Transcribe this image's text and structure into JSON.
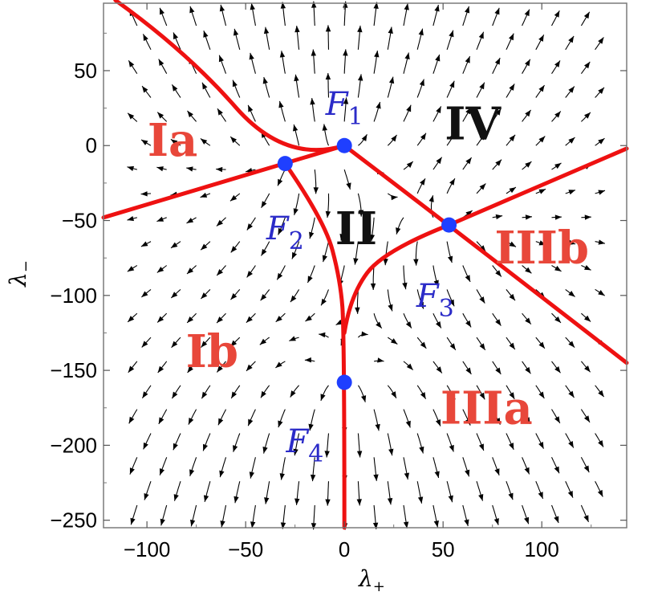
{
  "chart_data": {
    "type": "stream",
    "xlabel": "λ",
    "xlabel_sub": "+",
    "ylabel": "λ",
    "ylabel_sub": "−",
    "xlim": [
      -122,
      143
    ],
    "ylim": [
      -255,
      95
    ],
    "xticks": [
      {
        "value": -100,
        "label": "−100"
      },
      {
        "value": -50,
        "label": "−50"
      },
      {
        "value": 0,
        "label": "0"
      },
      {
        "value": 50,
        "label": "50"
      },
      {
        "value": 100,
        "label": "100"
      }
    ],
    "yticks": [
      {
        "value": 50,
        "label": "50"
      },
      {
        "value": 0,
        "label": "0"
      },
      {
        "value": -50,
        "label": "−50"
      },
      {
        "value": -100,
        "label": "−100"
      },
      {
        "value": -150,
        "label": "−150"
      },
      {
        "value": -200,
        "label": "−200"
      },
      {
        "value": -250,
        "label": "−250"
      }
    ],
    "fixed_points": [
      {
        "name": "F",
        "sub": "1",
        "x": 0,
        "y": 0,
        "label_x": 0,
        "label_y": 28
      },
      {
        "name": "F",
        "sub": "2",
        "x": -30,
        "y": -12,
        "label_x": -30,
        "label_y": -55
      },
      {
        "name": "F",
        "sub": "3",
        "x": 53,
        "y": -53,
        "label_x": 46,
        "label_y": -100
      },
      {
        "name": "F",
        "sub": "4",
        "x": 0,
        "y": -158,
        "label_x": -20,
        "label_y": -197
      }
    ],
    "regions": [
      {
        "label": "Ia",
        "x": -87,
        "y": 4,
        "color": "#e8473a"
      },
      {
        "label": "Ib",
        "x": -67,
        "y": -137,
        "color": "#e8473a"
      },
      {
        "label": "II",
        "x": 6,
        "y": -55,
        "color": "#111111"
      },
      {
        "label": "IIIa",
        "x": 72,
        "y": -175,
        "color": "#e8473a"
      },
      {
        "label": "IIIb",
        "x": 100,
        "y": -68,
        "color": "#e8473a"
      },
      {
        "label": "IV",
        "x": 65,
        "y": 15,
        "color": "#111111"
      }
    ],
    "separatrices": [
      {
        "points": [
          [
            -116,
            97
          ],
          [
            -80,
            63
          ],
          [
            -30,
            -12
          ],
          [
            0,
            0
          ]
        ]
      },
      {
        "points": [
          [
            -122,
            -48
          ],
          [
            -30,
            -12
          ],
          [
            0,
            0
          ]
        ]
      },
      {
        "points": [
          [
            0,
            0
          ],
          [
            53,
            -53
          ],
          [
            143,
            -145
          ]
        ]
      },
      {
        "points": [
          [
            53,
            -53
          ],
          [
            143,
            -2
          ]
        ]
      },
      {
        "points": [
          [
            -30,
            -12
          ],
          [
            -10,
            -50
          ],
          [
            -2,
            -90
          ],
          [
            0,
            -125
          ],
          [
            0,
            -255
          ]
        ]
      },
      {
        "points": [
          [
            53,
            -53
          ],
          [
            20,
            -70
          ],
          [
            3,
            -100
          ],
          [
            0,
            -125
          ]
        ]
      }
    ],
    "colors": {
      "separatrix": "#ee1111",
      "fixed_point": "#1f3fff",
      "stream": "#000000"
    }
  }
}
